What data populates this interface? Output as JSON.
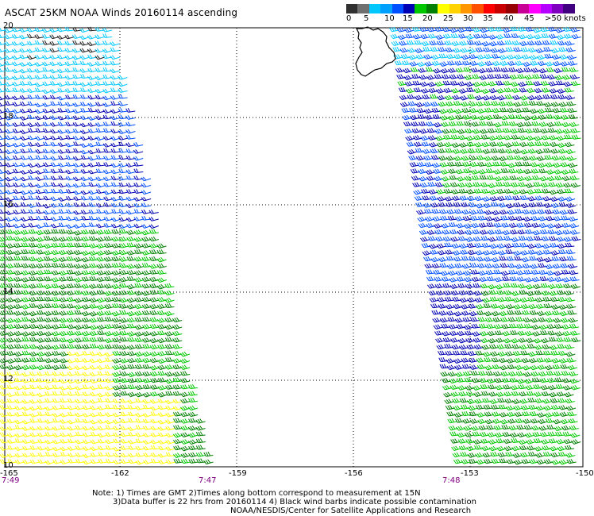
{
  "title": "ASCAT 25KM NOAA Winds 20160114 ascending",
  "legend": {
    "labels": [
      "0",
      "5",
      "10",
      "15",
      "20",
      "25",
      "30",
      "35",
      "40",
      "45",
      ">50 knots"
    ],
    "colors": [
      "#303030",
      "#707070",
      "#00c8ff",
      "#00a0ff",
      "#0050ff",
      "#0000b4",
      "#00c800",
      "#008000",
      "#ffff00",
      "#ffd200",
      "#ff9600",
      "#ff5000",
      "#ff0000",
      "#c80000",
      "#960000",
      "#c80096",
      "#ff00ff",
      "#b400ff",
      "#8000c0",
      "#400080"
    ]
  },
  "axes": {
    "x_ticks": [
      "-165",
      "-162",
      "-159",
      "-156",
      "-153",
      "-150"
    ],
    "y_ticks": [
      "20",
      "18",
      "16",
      "14",
      "12",
      "10"
    ]
  },
  "times": [
    "7:49",
    "7:47",
    "7:48"
  ],
  "notes": [
    "Note: 1) Times are GMT 2)Times along bottom correspond to measurement at 15N",
    "3)Data buffer is 22 hrs from 20160114 4) Black wind barbs indicate possible contamination",
    "NOAA/NESDIS/Center for Satellite Applications and Research"
  ],
  "wind_colors": {
    "black": "#202020",
    "cyan": "#00c8ff",
    "blue_light": "#0050ff",
    "blue_dark": "#0000b4",
    "green_light": "#00c800",
    "green_dark": "#008000",
    "yellow": "#ffff00"
  },
  "land": "Hawaii (Big Island)"
}
